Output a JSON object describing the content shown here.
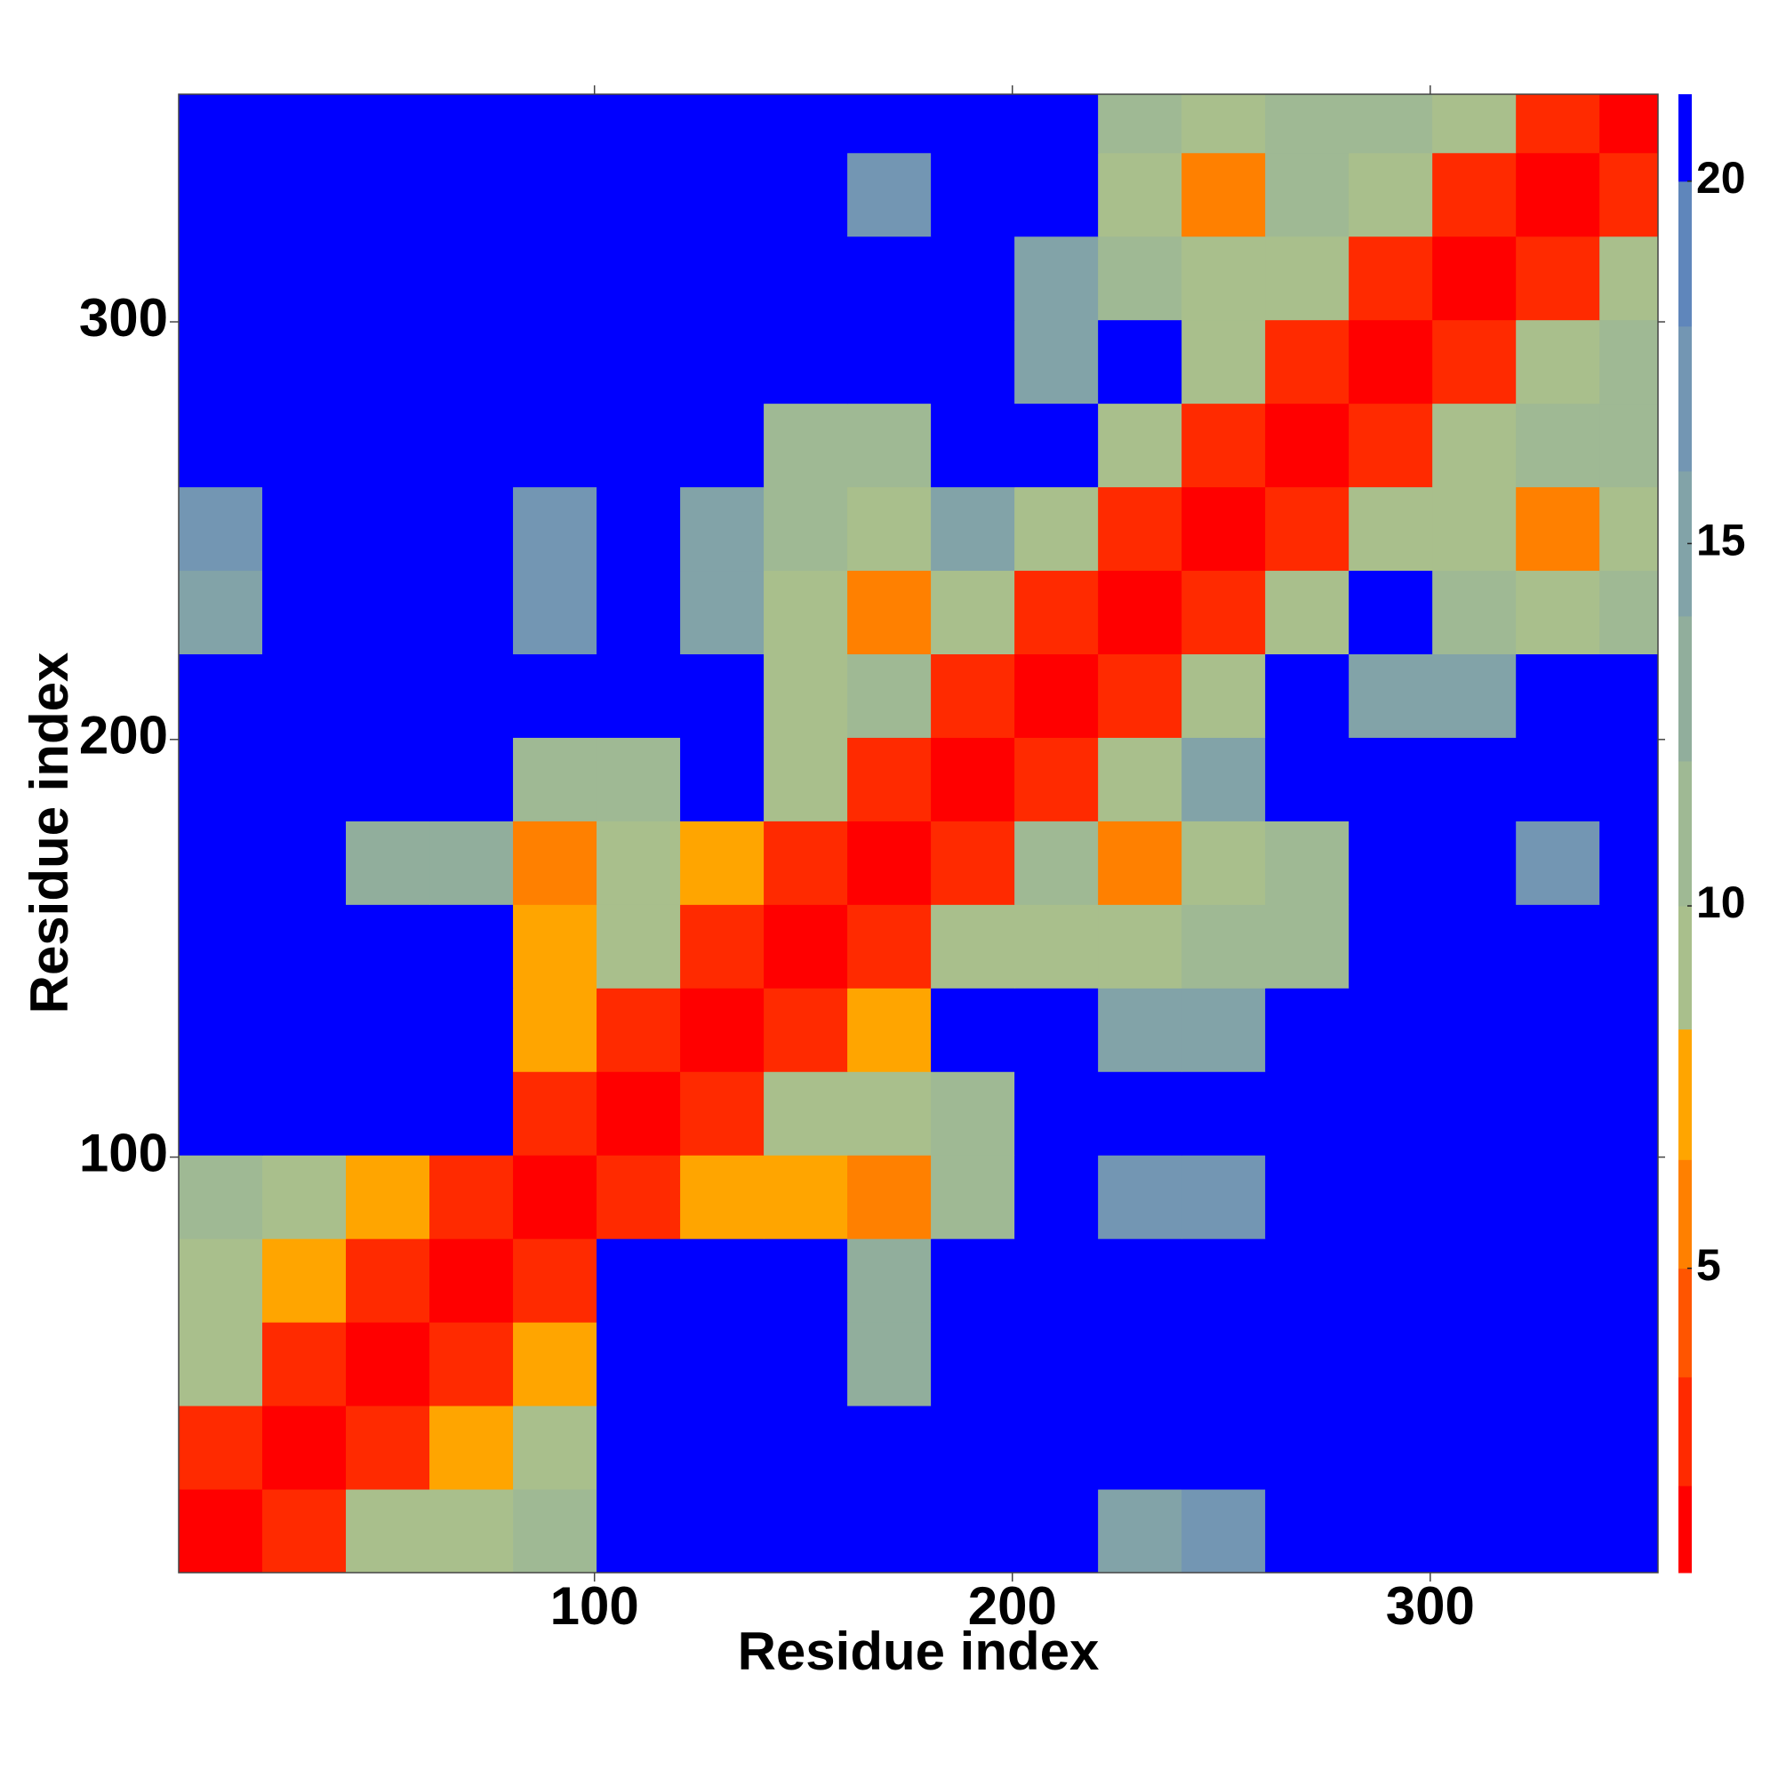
{
  "chart_data": {
    "type": "heatmap",
    "x_label": "Residue index",
    "y_label": "Residue index",
    "bins": [
      0.5,
      20.5,
      40.5,
      60.5,
      80.5,
      100.5,
      120.5,
      140.5,
      160.5,
      180.5,
      200.5,
      220.5,
      240.5,
      260.5,
      280.5,
      300.5,
      320.5,
      340.5,
      354.5
    ],
    "xlim": [
      0.5,
      354.5
    ],
    "ylim": [
      0.5,
      354.5
    ],
    "xticks": [
      100,
      200,
      300
    ],
    "yticks": [
      100,
      200,
      300
    ],
    "z": [
      [
        1,
        3,
        9,
        9,
        10,
        21,
        21,
        21,
        21,
        21,
        21,
        15,
        17,
        21,
        21,
        21,
        21,
        21
      ],
      [
        3,
        1,
        3,
        8,
        9,
        21,
        21,
        21,
        21,
        21,
        21,
        21,
        21,
        21,
        21,
        21,
        21,
        21
      ],
      [
        9,
        3,
        1,
        3,
        7,
        21,
        21,
        21,
        12,
        21,
        21,
        21,
        21,
        21,
        21,
        21,
        21,
        21
      ],
      [
        9,
        8,
        3,
        1,
        3,
        21,
        21,
        21,
        12,
        21,
        21,
        21,
        21,
        21,
        21,
        21,
        21,
        21
      ],
      [
        10,
        9,
        7,
        3,
        1,
        3,
        7,
        8,
        6,
        10,
        21,
        16,
        16,
        21,
        21,
        21,
        21,
        21
      ],
      [
        21,
        21,
        21,
        21,
        3,
        1,
        3,
        9,
        9,
        11,
        21,
        21,
        21,
        21,
        21,
        21,
        21,
        21
      ],
      [
        21,
        21,
        21,
        21,
        7,
        3,
        1,
        3,
        8,
        21,
        21,
        15,
        15,
        21,
        21,
        21,
        21,
        21
      ],
      [
        21,
        21,
        21,
        21,
        8,
        9,
        3,
        1,
        3,
        9,
        9,
        9,
        10,
        11,
        21,
        21,
        21,
        21
      ],
      [
        21,
        21,
        12,
        12,
        6,
        9,
        8,
        3,
        1,
        3,
        10,
        6,
        9,
        11,
        21,
        21,
        16,
        21
      ],
      [
        21,
        21,
        21,
        21,
        10,
        11,
        21,
        9,
        3,
        1,
        3,
        9,
        14,
        21,
        21,
        21,
        21,
        21
      ],
      [
        21,
        21,
        21,
        21,
        21,
        21,
        21,
        9,
        10,
        3,
        1,
        3,
        9,
        21,
        15,
        15,
        21,
        21
      ],
      [
        15,
        21,
        21,
        21,
        16,
        21,
        15,
        9,
        6,
        9,
        3,
        1,
        3,
        9,
        21,
        10,
        9,
        11
      ],
      [
        17,
        21,
        21,
        21,
        16,
        21,
        15,
        10,
        9,
        14,
        9,
        3,
        1,
        3,
        9,
        9,
        5,
        9
      ],
      [
        21,
        21,
        21,
        21,
        21,
        21,
        21,
        11,
        11,
        21,
        21,
        9,
        3,
        1,
        3,
        9,
        10,
        11
      ],
      [
        21,
        21,
        21,
        21,
        21,
        21,
        21,
        21,
        21,
        21,
        15,
        21,
        9,
        3,
        1,
        3,
        9,
        11
      ],
      [
        21,
        21,
        21,
        21,
        21,
        21,
        21,
        21,
        21,
        21,
        15,
        10,
        9,
        9,
        3,
        1,
        3,
        9
      ],
      [
        21,
        21,
        21,
        21,
        21,
        21,
        21,
        21,
        16,
        21,
        21,
        9,
        5,
        10,
        9,
        3,
        1,
        3
      ],
      [
        21,
        21,
        21,
        21,
        21,
        21,
        21,
        21,
        21,
        21,
        21,
        11,
        9,
        11,
        11,
        9,
        3,
        1
      ]
    ],
    "zlim": [
      0.8,
      21.2
    ],
    "zticks": [
      5,
      10,
      15,
      20
    ],
    "color_bounds": [
      0.8,
      2,
      3.5,
      5,
      6.5,
      8.3,
      10,
      12,
      14,
      16,
      18,
      20,
      21.2
    ],
    "colors": [
      "#ff0000",
      "#ff2a00",
      "#ff5500",
      "#ff8000",
      "#ffa500",
      "#a9bf8c",
      "#9fb994",
      "#91ae9c",
      "#82a3a8",
      "#7396b3",
      "#5f86bb",
      "#0000ff"
    ]
  }
}
